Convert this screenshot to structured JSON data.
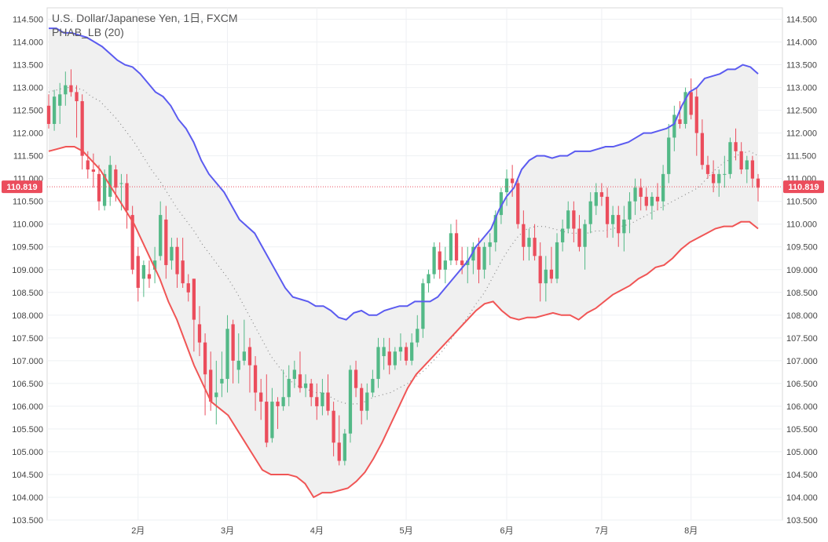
{
  "chart_data": {
    "type": "candlestick",
    "title": "U.S. Dollar/Japanese Yen, 1日, FXCM",
    "indicator_label": "PHAB_LB (20)",
    "ylim": [
      103.5,
      114.75
    ],
    "y_ticks": [
      "114.500",
      "114.000",
      "113.500",
      "113.000",
      "112.500",
      "112.000",
      "111.500",
      "111.000",
      "110.500",
      "110.000",
      "109.500",
      "109.000",
      "108.500",
      "108.000",
      "107.500",
      "107.000",
      "106.500",
      "106.000",
      "105.500",
      "105.000",
      "104.500",
      "104.000",
      "103.500"
    ],
    "x_ticks": [
      "2月",
      "3月",
      "4月",
      "5月",
      "6月",
      "7月",
      "8月"
    ],
    "last_price_label": "110.819",
    "colors": {
      "up": "#53b987",
      "down": "#eb4d5c",
      "upper_band": "#5b5bf0",
      "lower_band": "#f05555",
      "band_fill": "#f0f0f0",
      "middle": "#888888",
      "price_line": "#eb4d5c"
    },
    "candles": [
      [
        112.6,
        112.85,
        112.1,
        112.2
      ],
      [
        112.2,
        112.95,
        112.05,
        112.8
      ],
      [
        112.6,
        113.1,
        112.2,
        112.85
      ],
      [
        112.85,
        113.35,
        112.6,
        113.05
      ],
      [
        113.05,
        113.4,
        112.8,
        112.9
      ],
      [
        112.9,
        113.05,
        111.9,
        112.7
      ],
      [
        112.7,
        112.85,
        111.2,
        111.5
      ],
      [
        111.4,
        111.6,
        111.0,
        111.2
      ],
      [
        111.2,
        111.55,
        110.8,
        111.15
      ],
      [
        111.1,
        111.3,
        110.3,
        110.5
      ],
      [
        110.4,
        111.2,
        110.3,
        111.1
      ],
      [
        110.6,
        111.5,
        110.4,
        111.3
      ],
      [
        111.2,
        111.3,
        110.5,
        110.8
      ],
      [
        110.9,
        111.1,
        110.3,
        110.9
      ],
      [
        110.9,
        111.1,
        109.9,
        110.3
      ],
      [
        110.2,
        110.4,
        108.9,
        109.0
      ],
      [
        109.3,
        109.5,
        108.3,
        108.6
      ],
      [
        108.8,
        109.2,
        108.4,
        109.1
      ],
      [
        108.9,
        109.2,
        108.6,
        108.8
      ],
      [
        109.0,
        109.5,
        108.7,
        109.2
      ],
      [
        109.3,
        110.5,
        109.2,
        110.2
      ],
      [
        110.1,
        110.4,
        108.8,
        109.1
      ],
      [
        109.2,
        109.7,
        109.0,
        109.5
      ],
      [
        109.5,
        109.7,
        108.6,
        108.9
      ],
      [
        109.2,
        109.7,
        108.6,
        108.7
      ],
      [
        108.7,
        108.9,
        108.3,
        108.5
      ],
      [
        108.8,
        108.8,
        107.2,
        107.9
      ],
      [
        107.8,
        108.2,
        107.1,
        107.4
      ],
      [
        107.4,
        107.6,
        105.8,
        106.7
      ],
      [
        106.8,
        107.2,
        105.9,
        106.1
      ],
      [
        106.2,
        107.0,
        105.6,
        106.3
      ],
      [
        106.5,
        107.2,
        106.2,
        106.6
      ],
      [
        106.6,
        108.0,
        106.3,
        107.7
      ],
      [
        107.8,
        107.9,
        106.5,
        107.0
      ],
      [
        106.8,
        107.6,
        106.5,
        107.0
      ],
      [
        107.0,
        107.9,
        106.9,
        107.2
      ],
      [
        107.3,
        107.5,
        106.3,
        106.9
      ],
      [
        106.9,
        107.1,
        105.9,
        106.3
      ],
      [
        106.3,
        106.6,
        105.7,
        106.1
      ],
      [
        106.1,
        106.7,
        105.1,
        105.2
      ],
      [
        105.3,
        106.4,
        105.2,
        106.1
      ],
      [
        106.1,
        106.2,
        105.5,
        106.0
      ],
      [
        106.0,
        106.8,
        105.9,
        106.2
      ],
      [
        106.2,
        106.9,
        106.0,
        106.6
      ],
      [
        106.6,
        107.0,
        106.4,
        106.8
      ],
      [
        106.7,
        107.2,
        106.3,
        106.4
      ],
      [
        106.4,
        106.7,
        106.2,
        106.5
      ],
      [
        106.5,
        106.6,
        106.0,
        106.2
      ],
      [
        106.2,
        106.5,
        105.7,
        106.0
      ],
      [
        106.0,
        106.6,
        105.8,
        106.3
      ],
      [
        106.3,
        106.7,
        105.8,
        105.9
      ],
      [
        105.9,
        106.1,
        104.9,
        105.2
      ],
      [
        105.2,
        105.8,
        104.7,
        104.8
      ],
      [
        104.8,
        105.5,
        104.7,
        105.4
      ],
      [
        105.4,
        106.9,
        105.2,
        106.8
      ],
      [
        106.8,
        107.0,
        106.2,
        106.4
      ],
      [
        106.4,
        106.5,
        105.6,
        105.9
      ],
      [
        105.9,
        106.5,
        105.7,
        106.3
      ],
      [
        106.3,
        106.8,
        106.2,
        106.6
      ],
      [
        106.6,
        107.5,
        106.4,
        107.3
      ],
      [
        107.1,
        107.5,
        106.8,
        107.3
      ],
      [
        107.2,
        107.5,
        106.7,
        106.9
      ],
      [
        106.9,
        107.3,
        106.8,
        107.2
      ],
      [
        107.2,
        107.6,
        107.0,
        107.3
      ],
      [
        107.3,
        107.4,
        106.9,
        107.0
      ],
      [
        107.0,
        107.6,
        106.9,
        107.4
      ],
      [
        107.4,
        108.0,
        107.3,
        107.7
      ],
      [
        107.7,
        108.8,
        107.5,
        108.7
      ],
      [
        108.7,
        109.0,
        108.5,
        108.9
      ],
      [
        108.9,
        109.6,
        108.8,
        109.5
      ],
      [
        109.4,
        109.6,
        108.8,
        109.0
      ],
      [
        109.0,
        109.5,
        108.7,
        109.2
      ],
      [
        109.2,
        110.0,
        109.1,
        109.8
      ],
      [
        109.8,
        110.1,
        109.1,
        109.2
      ],
      [
        109.2,
        109.5,
        108.9,
        109.1
      ],
      [
        109.1,
        109.5,
        108.7,
        109.2
      ],
      [
        109.2,
        109.6,
        108.9,
        109.5
      ],
      [
        109.5,
        109.7,
        108.7,
        109.0
      ],
      [
        109.0,
        109.6,
        108.8,
        109.5
      ],
      [
        109.5,
        109.8,
        109.1,
        109.6
      ],
      [
        109.6,
        110.3,
        109.4,
        110.2
      ],
      [
        110.2,
        110.8,
        110.0,
        110.7
      ],
      [
        110.7,
        111.2,
        110.4,
        111.0
      ],
      [
        111.0,
        111.3,
        110.6,
        110.9
      ],
      [
        110.9,
        111.0,
        109.9,
        110.0
      ],
      [
        110.0,
        110.3,
        109.2,
        109.5
      ],
      [
        109.5,
        109.9,
        109.2,
        109.7
      ],
      [
        109.7,
        110.0,
        109.2,
        109.3
      ],
      [
        109.3,
        109.6,
        108.3,
        108.7
      ],
      [
        108.7,
        109.3,
        108.3,
        109.0
      ],
      [
        109.0,
        109.5,
        108.7,
        108.8
      ],
      [
        108.8,
        109.8,
        108.7,
        109.6
      ],
      [
        109.6,
        110.1,
        109.4,
        109.9
      ],
      [
        109.9,
        110.5,
        109.8,
        110.3
      ],
      [
        110.3,
        110.5,
        109.6,
        109.9
      ],
      [
        109.9,
        110.2,
        109.4,
        109.5
      ],
      [
        109.5,
        110.1,
        109.0,
        110.0
      ],
      [
        110.0,
        110.7,
        109.8,
        110.5
      ],
      [
        110.4,
        110.9,
        110.2,
        110.7
      ],
      [
        110.7,
        110.9,
        110.4,
        110.6
      ],
      [
        110.6,
        110.8,
        109.7,
        110.0
      ],
      [
        110.0,
        110.4,
        109.7,
        110.2
      ],
      [
        110.2,
        110.4,
        109.5,
        109.8
      ],
      [
        109.8,
        110.4,
        109.4,
        110.1
      ],
      [
        110.1,
        110.7,
        109.8,
        110.5
      ],
      [
        110.5,
        111.0,
        110.2,
        110.8
      ],
      [
        110.8,
        111.0,
        110.3,
        110.6
      ],
      [
        110.6,
        110.8,
        110.3,
        110.4
      ],
      [
        110.4,
        110.7,
        110.1,
        110.6
      ],
      [
        110.6,
        110.9,
        110.3,
        110.5
      ],
      [
        110.5,
        111.3,
        110.3,
        111.1
      ],
      [
        111.1,
        112.2,
        110.9,
        111.9
      ],
      [
        111.9,
        112.6,
        111.6,
        112.4
      ],
      [
        112.3,
        112.7,
        112.1,
        112.2
      ],
      [
        112.2,
        113.0,
        112.1,
        112.9
      ],
      [
        112.9,
        113.2,
        112.3,
        112.4
      ],
      [
        112.8,
        113.0,
        111.5,
        112.0
      ],
      [
        112.0,
        112.3,
        111.2,
        111.3
      ],
      [
        111.3,
        111.5,
        111.0,
        111.1
      ],
      [
        111.1,
        111.4,
        110.7,
        110.9
      ],
      [
        110.9,
        111.2,
        110.6,
        111.1
      ],
      [
        111.1,
        111.5,
        110.8,
        111.1
      ],
      [
        111.1,
        111.9,
        111.0,
        111.8
      ],
      [
        111.8,
        112.1,
        111.4,
        111.6
      ],
      [
        111.6,
        111.8,
        111.1,
        111.2
      ],
      [
        111.2,
        111.5,
        110.9,
        111.4
      ],
      [
        111.4,
        111.5,
        110.8,
        111.0
      ],
      [
        111.0,
        111.1,
        110.5,
        110.8
      ]
    ],
    "upper_band": [
      114.3,
      114.3,
      114.2,
      114.2,
      114.15,
      114.1,
      114.0,
      113.9,
      113.75,
      113.6,
      113.5,
      113.45,
      113.3,
      113.1,
      112.9,
      112.8,
      112.6,
      112.3,
      112.1,
      111.8,
      111.4,
      111.1,
      110.9,
      110.7,
      110.4,
      110.1,
      109.95,
      109.8,
      109.5,
      109.2,
      108.9,
      108.6,
      108.4,
      108.35,
      108.3,
      108.2,
      108.2,
      108.1,
      107.95,
      107.9,
      108.05,
      108.1,
      108.0,
      108.0,
      108.1,
      108.15,
      108.2,
      108.2,
      108.3,
      108.3,
      108.3,
      108.4,
      108.6,
      108.8,
      109.0,
      109.2,
      109.5,
      109.7,
      109.9,
      110.3,
      110.6,
      110.8,
      111.2,
      111.4,
      111.5,
      111.5,
      111.45,
      111.5,
      111.5,
      111.6,
      111.6,
      111.6,
      111.65,
      111.7,
      111.7,
      111.75,
      111.8,
      111.9,
      112.0,
      112.0,
      112.05,
      112.1,
      112.2,
      112.6,
      112.9,
      113.0,
      113.2,
      113.25,
      113.3,
      113.4,
      113.4,
      113.5,
      113.45,
      113.3
    ],
    "lower_band": [
      111.6,
      111.65,
      111.7,
      111.7,
      111.6,
      111.4,
      111.2,
      110.9,
      110.6,
      110.3,
      110.0,
      109.6,
      109.2,
      108.8,
      108.3,
      107.9,
      107.4,
      106.9,
      106.5,
      106.1,
      105.95,
      105.8,
      105.5,
      105.2,
      104.9,
      104.6,
      104.5,
      104.5,
      104.5,
      104.45,
      104.3,
      104.0,
      104.1,
      104.1,
      104.15,
      104.2,
      104.35,
      104.55,
      104.85,
      105.2,
      105.6,
      106.0,
      106.4,
      106.7,
      106.9,
      107.1,
      107.3,
      107.5,
      107.7,
      107.9,
      108.1,
      108.25,
      108.3,
      108.1,
      107.95,
      107.9,
      107.95,
      107.95,
      108.0,
      108.05,
      108.0,
      108.0,
      107.9,
      108.05,
      108.15,
      108.3,
      108.45,
      108.55,
      108.65,
      108.8,
      108.9,
      109.05,
      109.1,
      109.25,
      109.45,
      109.6,
      109.7,
      109.8,
      109.9,
      109.95,
      109.95,
      110.05,
      110.05,
      109.9
    ],
    "middle_line": [
      112.9,
      112.95,
      113.0,
      113.0,
      112.95,
      112.8,
      112.7,
      112.5,
      112.3,
      112.05,
      111.8,
      111.5,
      111.2,
      110.95,
      110.65,
      110.35,
      110.1,
      109.85,
      109.55,
      109.3,
      109.05,
      108.8,
      108.5,
      108.15,
      107.8,
      107.45,
      107.1,
      106.85,
      106.6,
      106.45,
      106.4,
      106.3,
      106.3,
      106.2,
      106.1,
      106.05,
      106.05,
      106.1,
      106.2,
      106.25,
      106.3,
      106.4,
      106.5,
      106.65,
      106.8,
      107.0,
      107.2,
      107.45,
      107.7,
      107.95,
      108.25,
      108.5,
      108.85,
      109.2,
      109.5,
      109.75,
      109.9,
      109.95,
      109.95,
      109.9,
      109.85,
      109.8,
      109.8,
      109.8,
      109.85,
      109.85,
      109.9,
      109.95,
      110.0,
      110.1,
      110.2,
      110.3,
      110.4,
      110.5,
      110.6,
      110.7,
      110.8,
      111.0,
      111.2,
      111.35,
      111.45,
      111.55,
      111.6,
      111.5
    ]
  }
}
